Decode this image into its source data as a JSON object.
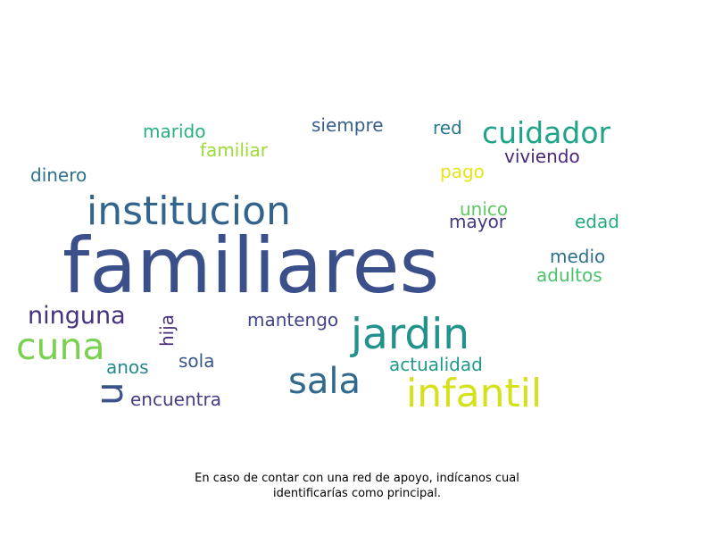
{
  "chart_data": {
    "type": "wordcloud",
    "caption_line1": "En caso de contar con una red de apoyo, indícanos cual",
    "caption_line2": "identificarías como principal.",
    "words": [
      {
        "text": "familiares",
        "color": "#3b4f8a"
      },
      {
        "text": "institucion",
        "color": "#32648e"
      },
      {
        "text": "jardin",
        "color": "#21918c"
      },
      {
        "text": "infantil",
        "color": "#d4e21b"
      },
      {
        "text": "sala",
        "color": "#31688e"
      },
      {
        "text": "cuna",
        "color": "#7ad151"
      },
      {
        "text": "cuidador",
        "color": "#20a386"
      },
      {
        "text": "ninguna",
        "color": "#46327e"
      },
      {
        "text": "u",
        "color": "#3b528b"
      },
      {
        "text": "marido",
        "color": "#29af7f"
      },
      {
        "text": "siempre",
        "color": "#355f8d"
      },
      {
        "text": "red",
        "color": "#2a788e"
      },
      {
        "text": "familiar",
        "color": "#a0da39"
      },
      {
        "text": "viviendo",
        "color": "#482878"
      },
      {
        "text": "dinero",
        "color": "#2c728e"
      },
      {
        "text": "pago",
        "color": "#e6e419"
      },
      {
        "text": "unico",
        "color": "#5ec962"
      },
      {
        "text": "mayor",
        "color": "#443983"
      },
      {
        "text": "edad",
        "color": "#25ab82"
      },
      {
        "text": "medio",
        "color": "#2e6f8e"
      },
      {
        "text": "adultos",
        "color": "#4ac16d"
      },
      {
        "text": "hija",
        "color": "#472d7b"
      },
      {
        "text": "mantengo",
        "color": "#414487"
      },
      {
        "text": "anos",
        "color": "#23898e"
      },
      {
        "text": "sola",
        "color": "#38598c"
      },
      {
        "text": "actualidad",
        "color": "#1f9a8a"
      },
      {
        "text": "encuentra",
        "color": "#433e85"
      }
    ]
  }
}
